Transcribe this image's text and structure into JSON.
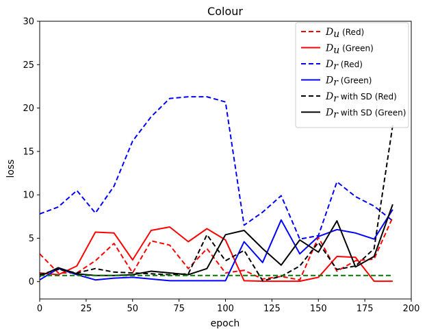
{
  "chart_data": {
    "type": "line",
    "title": "Colour",
    "xlabel": "epoch",
    "ylabel": "loss",
    "xlim": [
      0,
      200
    ],
    "ylim": [
      -2,
      30
    ],
    "xticks": [
      0,
      25,
      50,
      75,
      100,
      125,
      150,
      175,
      200
    ],
    "yticks": [
      0,
      5,
      10,
      15,
      20,
      25,
      30
    ],
    "xtick_labels": [
      "0",
      "25",
      "50",
      "75",
      "100",
      "125",
      "150",
      "175",
      "200"
    ],
    "ytick_labels": [
      "0",
      "5",
      "10",
      "15",
      "20",
      "25",
      "30"
    ],
    "legend_position": "top-right",
    "grid": false,
    "x": [
      0,
      10,
      20,
      30,
      40,
      50,
      60,
      70,
      80,
      90,
      100,
      110,
      120,
      130,
      140,
      150,
      160,
      170,
      180,
      190
    ],
    "series": [
      {
        "symbol": "D",
        "subscript": "u",
        "suffix": "  (Red)",
        "color": "#ff0000",
        "dash": true,
        "values": [
          3.2,
          1.0,
          1.0,
          2.4,
          4.4,
          1.0,
          4.7,
          4.2,
          1.5,
          3.8,
          1.0,
          1.3,
          0.3,
          0.6,
          0.2,
          5.1,
          1.2,
          2.4,
          2.6,
          7.4
        ]
      },
      {
        "symbol": "D",
        "subscript": "u",
        "suffix": "  (Green)",
        "color": "#ff0000",
        "dash": false,
        "values": [
          1.0,
          0.8,
          1.8,
          5.7,
          5.6,
          2.5,
          5.9,
          6.3,
          4.6,
          6.1,
          4.8,
          0.1,
          0.05,
          0.05,
          0.05,
          0.5,
          2.9,
          2.8,
          0.05,
          0.05
        ]
      },
      {
        "symbol": "D",
        "subscript": "r",
        "suffix": " (Red)",
        "color": "#0000ff",
        "dash": true,
        "values": [
          7.8,
          8.6,
          10.5,
          7.9,
          11.0,
          16.2,
          19.0,
          21.1,
          21.3,
          21.3,
          20.7,
          6.5,
          8.0,
          9.9,
          4.9,
          5.3,
          11.5,
          9.8,
          8.7,
          7.0
        ]
      },
      {
        "symbol": "D",
        "subscript": "r",
        "suffix": " (Green)",
        "color": "#0000ff",
        "dash": false,
        "values": [
          0.2,
          1.5,
          0.8,
          0.2,
          0.4,
          0.5,
          0.3,
          0.1,
          0.1,
          0.1,
          0.1,
          4.6,
          2.2,
          7.1,
          3.2,
          5.2,
          6.0,
          5.6,
          4.9,
          8.3
        ]
      },
      {
        "symbol": "D",
        "subscript": "r",
        "suffix": " with SD (Red)",
        "color": "#000000",
        "dash": true,
        "values": [
          0.8,
          1.4,
          1.0,
          1.5,
          1.1,
          1.0,
          0.9,
          0.8,
          0.9,
          5.4,
          2.4,
          3.6,
          0.1,
          0.6,
          1.8,
          4.5,
          1.4,
          1.8,
          3.8,
          18.0
        ]
      },
      {
        "symbol": "D",
        "subscript": "r",
        "suffix": " with SD (Green)",
        "color": "#000000",
        "dash": false,
        "values": [
          0.6,
          1.6,
          0.9,
          0.7,
          0.7,
          0.8,
          1.2,
          1.0,
          0.8,
          1.5,
          5.4,
          5.9,
          3.8,
          1.9,
          4.8,
          3.4,
          7.0,
          1.7,
          2.9,
          8.9
        ]
      },
      {
        "color": "#007700",
        "dash": true,
        "in_legend": false,
        "values": [
          0.7,
          0.7,
          0.7,
          0.7,
          0.7,
          0.7,
          0.7,
          0.7,
          0.7,
          0.7,
          0.7,
          0.7,
          0.7,
          0.7,
          0.7,
          0.7,
          0.7,
          0.7,
          0.7,
          0.7
        ]
      }
    ]
  }
}
